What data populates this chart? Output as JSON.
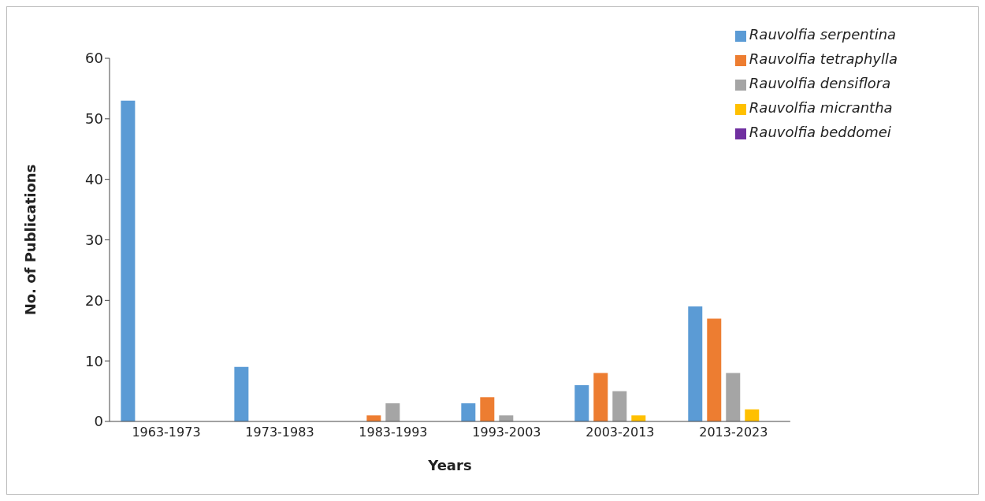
{
  "chart_data": {
    "type": "bar",
    "xlabel": "Years",
    "ylabel": "No. of Publications",
    "categories": [
      "1963-1973",
      "1973-1983",
      "1983-1993",
      "1993-2003",
      "2003-2013",
      "2013-2023"
    ],
    "series": [
      {
        "name": "Rauvolfia serpentina",
        "color": "#5b9bd5",
        "values": [
          53,
          9,
          0,
          3,
          6,
          19
        ]
      },
      {
        "name": "Rauvolfia tetraphylla",
        "color": "#ed7d31",
        "values": [
          0,
          0,
          1,
          4,
          8,
          17
        ]
      },
      {
        "name": "Rauvolfia densiflora",
        "color": "#a5a5a5",
        "values": [
          0,
          0,
          3,
          1,
          5,
          8
        ]
      },
      {
        "name": "Rauvolfia micrantha",
        "color": "#ffc000",
        "values": [
          0,
          0,
          0,
          0,
          1,
          2
        ]
      },
      {
        "name": "Rauvolfia beddomei",
        "color": "#7030a0",
        "values": [
          0,
          0,
          0,
          0,
          0,
          0
        ]
      }
    ],
    "ylim": [
      0,
      60
    ],
    "yticks": [
      0,
      10,
      20,
      30,
      40,
      50,
      60
    ],
    "grid": false,
    "legend": "top right"
  }
}
